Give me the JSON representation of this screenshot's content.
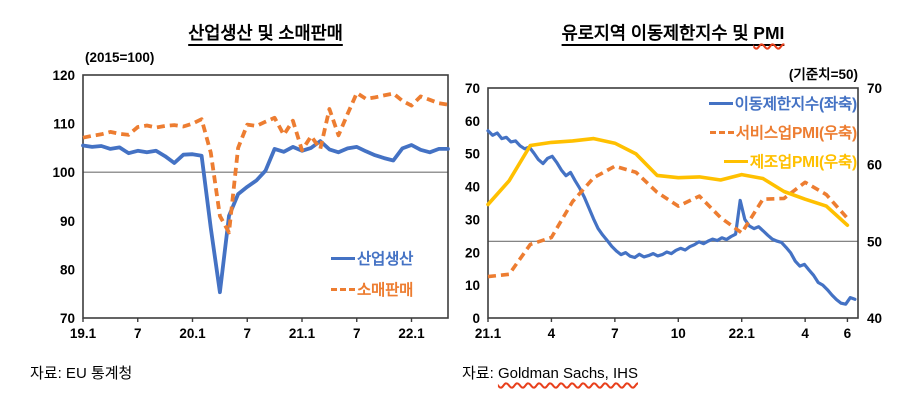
{
  "colors": {
    "industrial_blue": "#4472C4",
    "retail_orange": "#ED7D31",
    "manufacturing_yellow": "#FFC000",
    "frame": "#3d3d3d",
    "reference_line": "#737373",
    "spellcheck_red": "#e8401c"
  },
  "chart_data": [
    {
      "type": "line",
      "title": "산업생산 및 소매판매",
      "axis_note": "(2015=100)",
      "xlim": [
        0,
        40
      ],
      "x_ticks": [
        0,
        6,
        12,
        18,
        24,
        30,
        36
      ],
      "x_tick_labels": [
        "19.1",
        "7",
        "20.1",
        "7",
        "21.1",
        "7",
        "22.1"
      ],
      "y_left": {
        "lim": [
          70,
          120
        ],
        "ticks": [
          120,
          110,
          100,
          90,
          80,
          70
        ]
      },
      "ref_line": {
        "value": 100,
        "axis": "left"
      },
      "grid": "off",
      "legend_position": "inside-lower-right",
      "series": [
        {
          "name": "산업생산",
          "color": "#4472C4",
          "dash": false,
          "axis": "left",
          "x_start": 0,
          "x_step": 1,
          "values": [
            105.5,
            105.2,
            105.4,
            104.8,
            105.1,
            103.9,
            104.4,
            104.1,
            104.4,
            103.3,
            101.9,
            103.6,
            103.7,
            103.4,
            88.5,
            75.3,
            91.0,
            95.5,
            97.0,
            98.3,
            100.3,
            104.8,
            104.2,
            105.2,
            104.4,
            105.0,
            106.4,
            104.7,
            104.1,
            104.9,
            105.2,
            104.3,
            103.5,
            102.9,
            102.4,
            104.9,
            105.6,
            104.6,
            104.1,
            104.8,
            104.8
          ]
        },
        {
          "name": "소매판매",
          "color": "#ED7D31",
          "dash": true,
          "axis": "left",
          "x_start": 0,
          "x_step": 1,
          "values": [
            107.1,
            107.5,
            107.8,
            108.3,
            107.9,
            107.7,
            109.3,
            109.6,
            109.2,
            109.5,
            109.7,
            109.4,
            110.0,
            110.9,
            104.0,
            91.0,
            87.6,
            105.0,
            109.8,
            109.5,
            110.4,
            111.2,
            107.7,
            110.6,
            104.5,
            107.4,
            104.8,
            113.0,
            107.6,
            112.0,
            116.3,
            115.1,
            115.4,
            115.8,
            116.2,
            114.7,
            113.7,
            115.6,
            114.9,
            114.2,
            113.9
          ]
        }
      ],
      "source": "자료: EU 통계청"
    },
    {
      "type": "line",
      "title": "유로지역 이동제한지수 및 PMI",
      "title_parts": [
        "유로지역 이동제한지수 및 ",
        "PMI"
      ],
      "axis_note": "(기준치=50)",
      "xlim": [
        0,
        17.5
      ],
      "x_ticks": [
        0,
        3,
        6,
        9,
        12,
        15,
        17
      ],
      "x_tick_labels": [
        "21.1",
        "4",
        "7",
        "10",
        "22.1",
        "4",
        "6"
      ],
      "y_left": {
        "lim": [
          0,
          70
        ],
        "ticks": [
          70,
          60,
          50,
          40,
          30,
          20,
          10,
          0
        ]
      },
      "y_right": {
        "lim": [
          40,
          70
        ],
        "ticks": [
          70,
          60,
          50,
          40
        ]
      },
      "ref_line": {
        "value": 50,
        "axis": "right"
      },
      "grid": "off",
      "legend_position": "inside-top-right",
      "series": [
        {
          "name": "이동제한지수(좌축)",
          "color": "#4472C4",
          "dash": false,
          "axis": "left",
          "x_start": 0,
          "x_step": 0.2169,
          "values": [
            57.0,
            55.6,
            56.3,
            54.6,
            55.0,
            53.6,
            53.9,
            52.4,
            51.5,
            52.0,
            50.2,
            48.2,
            47.0,
            48.6,
            49.2,
            47.3,
            45.0,
            43.3,
            44.3,
            41.8,
            39.5,
            36.8,
            33.5,
            30.2,
            27.2,
            25.3,
            23.6,
            21.8,
            20.4,
            19.3,
            19.9,
            18.8,
            18.4,
            19.4,
            18.6,
            19.0,
            19.6,
            18.9,
            19.3,
            20.1,
            19.6,
            20.6,
            21.2,
            20.7,
            21.7,
            22.3,
            23.2,
            22.6,
            23.4,
            24.0,
            23.6,
            24.4,
            23.9,
            24.8,
            25.5,
            35.8,
            30.0,
            28.0,
            27.2,
            27.8,
            26.5,
            25.2,
            24.0,
            23.4,
            23.0,
            21.5,
            19.8,
            17.3,
            15.8,
            16.3,
            14.6,
            13.0,
            10.8,
            10.0,
            8.6,
            7.0,
            5.6,
            4.5,
            4.2,
            6.2,
            5.7
          ]
        },
        {
          "name": "서비스업PMI(우축)",
          "color": "#ED7D31",
          "dash": true,
          "axis": "right",
          "x_start": 0,
          "x_step": 1,
          "values": [
            45.4,
            45.7,
            49.6,
            50.5,
            55.2,
            58.3,
            59.8,
            59.0,
            56.4,
            54.6,
            55.9,
            53.1,
            51.1,
            55.5,
            55.6,
            57.7,
            56.1,
            53.0
          ]
        },
        {
          "name": "제조업PMI(우축)",
          "color": "#FFC000",
          "dash": false,
          "axis": "right",
          "x_start": 0,
          "x_step": 1,
          "values": [
            54.8,
            57.9,
            62.5,
            62.9,
            63.1,
            63.4,
            62.8,
            61.4,
            58.6,
            58.3,
            58.4,
            58.0,
            58.7,
            58.2,
            56.5,
            55.5,
            54.6,
            52.1
          ]
        }
      ],
      "source": "자료: Goldman Sachs, IHS",
      "source_parts": [
        "자료: ",
        "Goldman Sachs, IHS"
      ]
    }
  ]
}
